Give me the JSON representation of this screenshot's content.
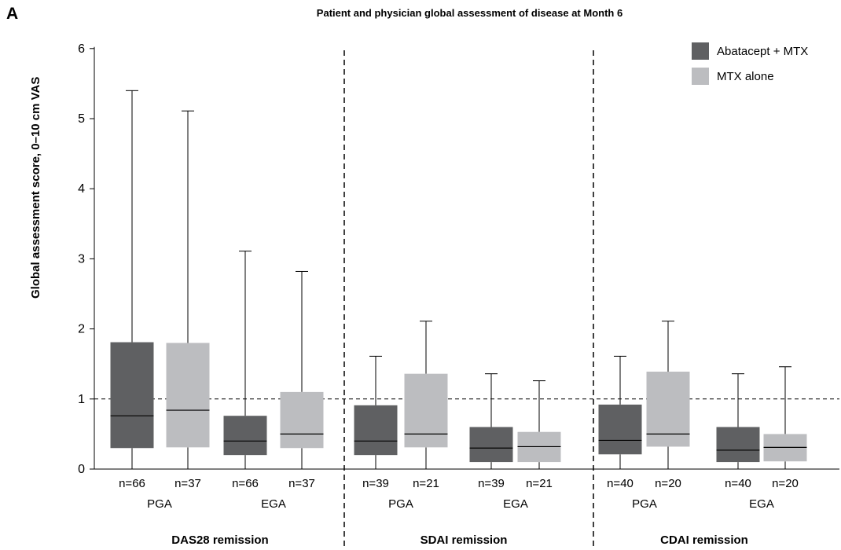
{
  "panel_letter": "A",
  "chart_data": {
    "type": "box",
    "title": "Patient and physician global assessment of disease at Month 6",
    "ylabel": "Global assessment score, 0–10 cm VAS",
    "xlabel": "",
    "ylim": [
      0,
      6
    ],
    "yticks": [
      0,
      1,
      2,
      3,
      4,
      5,
      6
    ],
    "reference_line": 1,
    "legend_position": "top-right",
    "colors": {
      "Abatacept + MTX": "#5f6062",
      "MTX alone": "#bcbdc0"
    },
    "series": [
      {
        "name": "Abatacept + MTX"
      },
      {
        "name": "MTX alone"
      }
    ],
    "groups": [
      {
        "label": "DAS28 remission",
        "subgroups": [
          {
            "label": "PGA",
            "boxes": [
              {
                "series": "Abatacept + MTX",
                "n": "n=66",
                "min": 0.3,
                "q1": 0.3,
                "median": 0.76,
                "q3": 1.81,
                "max": 5.4
              },
              {
                "series": "MTX alone",
                "n": "n=37",
                "min": 0.3,
                "q1": 0.31,
                "median": 0.84,
                "q3": 1.8,
                "max": 5.11
              }
            ]
          },
          {
            "label": "EGA",
            "boxes": [
              {
                "series": "Abatacept + MTX",
                "n": "n=66",
                "min": 0.2,
                "q1": 0.2,
                "median": 0.4,
                "q3": 0.76,
                "max": 3.11
              },
              {
                "series": "MTX alone",
                "n": "n=37",
                "min": 0.3,
                "q1": 0.3,
                "median": 0.5,
                "q3": 1.1,
                "max": 2.82
              }
            ]
          }
        ]
      },
      {
        "label": "SDAI remission",
        "subgroups": [
          {
            "label": "PGA",
            "boxes": [
              {
                "series": "Abatacept + MTX",
                "n": "n=39",
                "min": 0.2,
                "q1": 0.2,
                "median": 0.4,
                "q3": 0.91,
                "max": 1.61
              },
              {
                "series": "MTX alone",
                "n": "n=21",
                "min": 0.3,
                "q1": 0.31,
                "median": 0.5,
                "q3": 1.36,
                "max": 2.11
              }
            ]
          },
          {
            "label": "EGA",
            "boxes": [
              {
                "series": "Abatacept + MTX",
                "n": "n=39",
                "min": 0.1,
                "q1": 0.1,
                "median": 0.3,
                "q3": 0.6,
                "max": 1.36
              },
              {
                "series": "MTX alone",
                "n": "n=21",
                "min": 0.1,
                "q1": 0.1,
                "median": 0.32,
                "q3": 0.53,
                "max": 1.26
              }
            ]
          }
        ]
      },
      {
        "label": "CDAI remission",
        "subgroups": [
          {
            "label": "PGA",
            "boxes": [
              {
                "series": "Abatacept + MTX",
                "n": "n=40",
                "min": 0.2,
                "q1": 0.21,
                "median": 0.41,
                "q3": 0.92,
                "max": 1.61
              },
              {
                "series": "MTX alone",
                "n": "n=20",
                "min": 0.31,
                "q1": 0.32,
                "median": 0.5,
                "q3": 1.39,
                "max": 2.11
              }
            ]
          },
          {
            "label": "EGA",
            "boxes": [
              {
                "series": "Abatacept + MTX",
                "n": "n=40",
                "min": 0.1,
                "q1": 0.1,
                "median": 0.27,
                "q3": 0.6,
                "max": 1.36
              },
              {
                "series": "MTX alone",
                "n": "n=20",
                "min": 0.1,
                "q1": 0.11,
                "median": 0.31,
                "q3": 0.5,
                "max": 1.46
              }
            ]
          }
        ]
      }
    ]
  }
}
